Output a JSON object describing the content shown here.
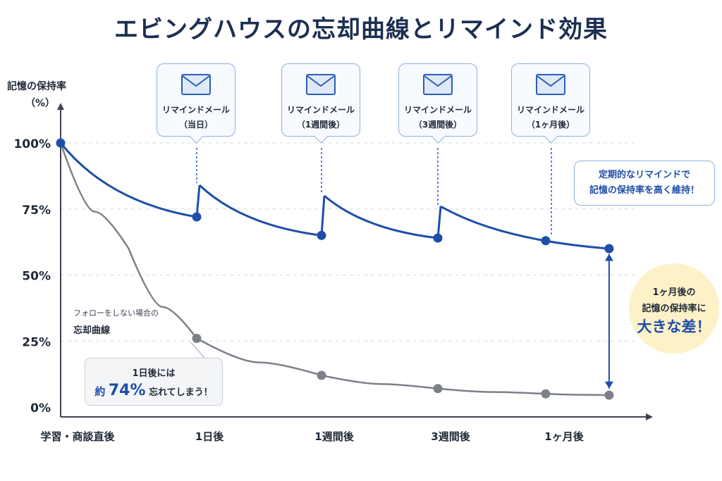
{
  "title": "エビングハウスの忘却曲線とリマインド効果",
  "chart_data": {
    "type": "line",
    "ylabel": "記憶の保持率",
    "yunit": "（%）",
    "ylim": [
      0,
      100
    ],
    "y_ticks": [
      "0%",
      "25%",
      "50%",
      "75%",
      "100%"
    ],
    "y_tick_values": [
      0,
      25,
      50,
      75,
      100
    ],
    "categories": [
      "学習・商談直後",
      "1日後",
      "1週間後",
      "3週間後",
      "1ヶ月後"
    ],
    "grid": true,
    "series": [
      {
        "name": "",
        "color": "#1e4fa8",
        "segments": [
          {
            "from": [
              0,
              100
            ],
            "to": [
              1,
              72
            ]
          },
          {
            "from": [
              1,
              84
            ],
            "to": [
              2,
              65
            ]
          },
          {
            "from": [
              2,
              80
            ],
            "to": [
              3,
              64
            ]
          },
          {
            "from": [
              3,
              76
            ],
            "to": [
              4.45,
              60
            ]
          }
        ],
        "points": [
          [
            0,
            100
          ],
          [
            1,
            72
          ],
          [
            2,
            65
          ],
          [
            3,
            64
          ],
          [
            3.95,
            63
          ],
          [
            4.45,
            60
          ]
        ]
      },
      {
        "name": "忘却曲線",
        "color": "#7c8089",
        "curve": [
          [
            0,
            100
          ],
          [
            0.5,
            60
          ],
          [
            1,
            26
          ],
          [
            2,
            12
          ],
          [
            3,
            7
          ],
          [
            3.95,
            5
          ],
          [
            4.45,
            4.5
          ]
        ],
        "points": [
          [
            1,
            26
          ],
          [
            2,
            12
          ],
          [
            3,
            7
          ],
          [
            3.95,
            5
          ],
          [
            4.45,
            4.5
          ]
        ]
      }
    ]
  },
  "reminders": [
    {
      "line1": "リマインドメール",
      "line2": "（当日）",
      "icon": "mail-icon"
    },
    {
      "line1": "リマインドメール",
      "line2": "（1週間後）",
      "icon": "mail-icon"
    },
    {
      "line1": "リマインドメール",
      "line2": "（3週間後）",
      "icon": "mail-icon"
    },
    {
      "line1": "リマインドメール",
      "line2": "（1ヶ月後）",
      "icon": "mail-icon"
    }
  ],
  "annotations": {
    "maintain_line1": "定期的なリマインドで",
    "maintain_line2": "記憶の保持率を高く維持！",
    "diff_line1": "1ヶ月後の",
    "diff_line2": "記憶の保持率に",
    "diff_line3": "大きな差！",
    "nofollow_line1": "フォローをしない場合の",
    "nofollow_line2": "忘却曲線",
    "forget_line1": "1日後には",
    "forget_prefix": "約",
    "forget_value": "74%",
    "forget_suffix": "忘れてしまう！"
  },
  "colors": {
    "blue": "#1e4fa8",
    "gray": "#7c8089",
    "highlight": "#fdf1c8"
  }
}
